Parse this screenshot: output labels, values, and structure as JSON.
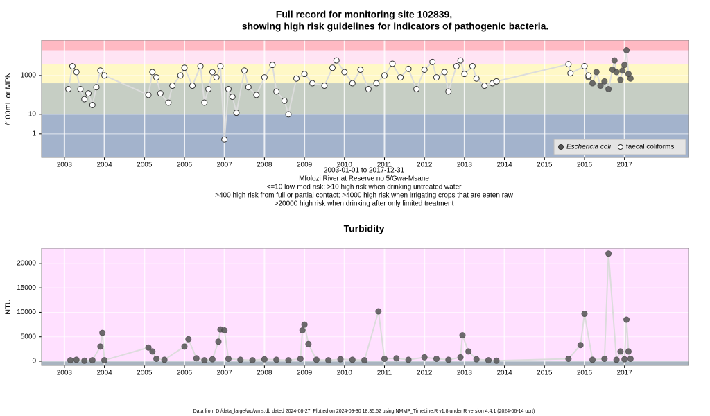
{
  "chart_data": [
    {
      "type": "scatter",
      "title_lines": [
        "Full record for monitoring site 102839,",
        "showing high risk guidelines for indicators of pathogenic bacteria."
      ],
      "y_label": "/100mL or MPN",
      "notes": [
        "2003-01-01 to 2017-12-31",
        "Mfolozi River at Reserve no 5/Gwa-Msane",
        "<=10 low-med risk; >10 high risk when drinking untreated water",
        ">400 high risk from full or partial contact; >4000 high risk when irrigating crops that are eaten raw",
        ">20000 high risk when drinking after only limited treatment"
      ],
      "log_y": true,
      "xlim": [
        2002.43,
        2018.6
      ],
      "xticks": [
        2003,
        2004,
        2005,
        2006,
        2007,
        2008,
        2009,
        2010,
        2011,
        2012,
        2013,
        2014,
        2015,
        2016,
        2017
      ],
      "ylim": [
        0.06,
        66000
      ],
      "yticks": [
        1,
        10,
        1000
      ],
      "grid": true,
      "legend": "bottom right",
      "bands": {
        "thresholds": [
          10,
          400,
          4000,
          20000
        ],
        "colors": [
          "#a3b3cc",
          "#c6cec4",
          "#fff8c6",
          "#ffe4f4",
          "#ffb9c3"
        ]
      },
      "series": [
        {
          "name": "Eschericia coli",
          "color": "#555555",
          "marker": "filled",
          "x": [
            2016.0,
            2016.1,
            2016.2,
            2016.3,
            2016.4,
            2016.5,
            2016.6,
            2016.7,
            2016.75,
            2016.8,
            2016.9,
            2016.95,
            2017.0,
            2017.05,
            2017.1,
            2017.15
          ],
          "values": [
            3000,
            800,
            400,
            1500,
            300,
            500,
            200,
            2000,
            6000,
            1500,
            600,
            1800,
            3500,
            20000,
            1200,
            700
          ]
        },
        {
          "name": "faecal coliforms",
          "color": "#ffffff",
          "marker": "open",
          "x": [
            2003.1,
            2003.2,
            2003.3,
            2003.4,
            2003.5,
            2003.6,
            2003.7,
            2003.8,
            2003.9,
            2004.0,
            2005.1,
            2005.2,
            2005.3,
            2005.4,
            2005.6,
            2005.7,
            2005.9,
            2006.0,
            2006.2,
            2006.4,
            2006.5,
            2006.6,
            2006.7,
            2006.8,
            2006.9,
            2007.0,
            2007.1,
            2007.2,
            2007.3,
            2007.5,
            2007.6,
            2007.8,
            2008.0,
            2008.2,
            2008.3,
            2008.5,
            2008.6,
            2008.8,
            2009.0,
            2009.2,
            2009.5,
            2009.7,
            2009.8,
            2010.0,
            2010.2,
            2010.4,
            2010.6,
            2010.8,
            2011.0,
            2011.2,
            2011.4,
            2011.6,
            2011.8,
            2012.0,
            2012.2,
            2012.3,
            2012.5,
            2012.6,
            2012.8,
            2012.9,
            2013.0,
            2013.2,
            2013.3,
            2013.5,
            2013.7,
            2013.8,
            2015.6,
            2015.65,
            2016.0,
            2016.1
          ],
          "values": [
            200,
            3000,
            1500,
            200,
            60,
            120,
            30,
            250,
            1800,
            1000,
            100,
            1500,
            800,
            120,
            40,
            300,
            1000,
            2500,
            300,
            3000,
            40,
            200,
            1500,
            800,
            3000,
            0.5,
            200,
            80,
            12,
            1800,
            250,
            100,
            800,
            3500,
            150,
            50,
            10,
            700,
            1200,
            400,
            300,
            2500,
            6000,
            1500,
            400,
            2000,
            200,
            400,
            1000,
            4000,
            800,
            2200,
            200,
            2000,
            5000,
            800,
            1500,
            150,
            3000,
            6000,
            1200,
            3000,
            700,
            300,
            400,
            500,
            3800,
            1300,
            3000,
            1000
          ]
        }
      ]
    },
    {
      "type": "scatter",
      "title": "Turbidity",
      "y_label": "NTU",
      "xlim": [
        2002.43,
        2018.6
      ],
      "xticks": [
        2003,
        2004,
        2005,
        2006,
        2007,
        2008,
        2009,
        2010,
        2011,
        2012,
        2013,
        2014,
        2015,
        2016,
        2017
      ],
      "ylim": [
        -850,
        23100
      ],
      "yticks": [
        0,
        5000,
        10000,
        15000,
        20000
      ],
      "grid": true,
      "bands": {
        "thresholds": [
          100
        ],
        "colors": [
          "#a9b4c0",
          "#ffe0ff"
        ]
      },
      "color": "#555555",
      "marker": "filled",
      "x": [
        2003.15,
        2003.3,
        2003.5,
        2003.7,
        2003.9,
        2003.95,
        2004.0,
        2005.1,
        2005.2,
        2005.3,
        2005.5,
        2006.0,
        2006.1,
        2006.3,
        2006.5,
        2006.7,
        2006.85,
        2006.9,
        2007.0,
        2007.1,
        2007.4,
        2007.7,
        2008.0,
        2008.3,
        2008.6,
        2008.9,
        2008.95,
        2009.0,
        2009.1,
        2009.3,
        2009.6,
        2009.9,
        2010.2,
        2010.5,
        2010.85,
        2011.0,
        2011.3,
        2011.6,
        2012.0,
        2012.3,
        2012.6,
        2012.9,
        2012.95,
        2013.1,
        2013.3,
        2013.6,
        2013.8,
        2015.6,
        2015.9,
        2016.0,
        2016.2,
        2016.5,
        2016.6,
        2016.8,
        2016.9,
        2017.0,
        2017.05,
        2017.1,
        2017.15
      ],
      "values": [
        200,
        300,
        100,
        200,
        3000,
        5800,
        200,
        2800,
        2000,
        500,
        300,
        3000,
        4500,
        600,
        200,
        400,
        4000,
        6500,
        6300,
        500,
        300,
        200,
        400,
        300,
        200,
        500,
        6300,
        7500,
        3500,
        300,
        200,
        400,
        300,
        200,
        10200,
        500,
        600,
        300,
        800,
        500,
        300,
        800,
        5300,
        2000,
        400,
        200,
        100,
        500,
        3300,
        9700,
        300,
        500,
        22000,
        300,
        2000,
        400,
        8500,
        2000,
        500
      ]
    }
  ],
  "footer": "Data from D:/data_large/wq/wms.db dated 2024-08-27. Plotted on 2024-09-30 18:35:52 using NMMP_TimeLine.R v1.8 under R version 4.4.1 (2024-06-14 ucrt)"
}
